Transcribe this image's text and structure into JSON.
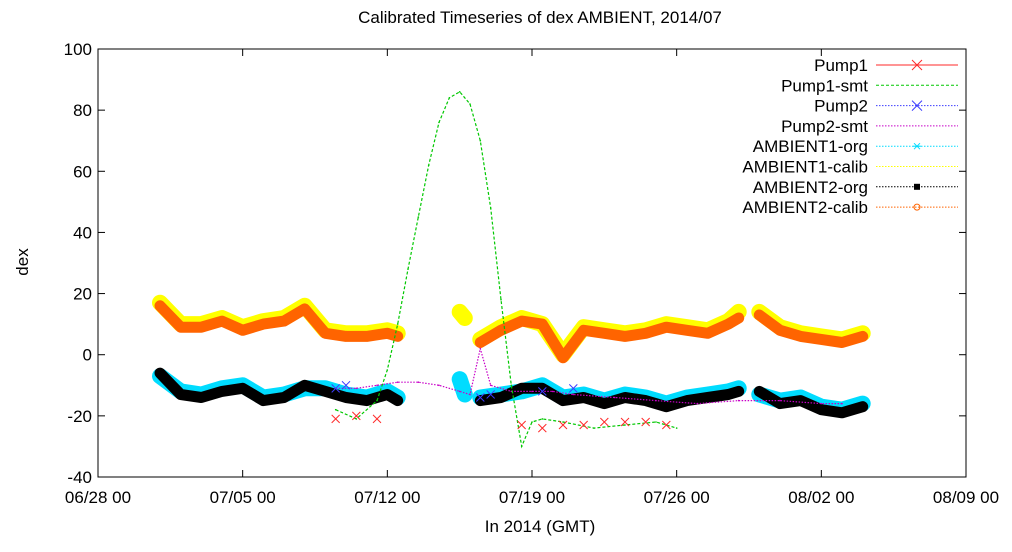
{
  "chart_data": {
    "type": "line",
    "title": "Calibrated Timeseries of dex AMBIENT, 2014/07",
    "xlabel": "In 2014 (GMT)",
    "ylabel": "dex",
    "xlim": [
      "06/28 00",
      "08/09 00"
    ],
    "ylim": [
      -40,
      100
    ],
    "y_ticks": [
      -40,
      -20,
      0,
      20,
      40,
      60,
      80,
      100
    ],
    "x_ticks": [
      "06/28 00",
      "07/05 00",
      "07/12 00",
      "07/19 00",
      "07/26 00",
      "08/02 00",
      "08/09 00"
    ],
    "grid": false,
    "legend_position": "top-right",
    "series": [
      {
        "name": "Pump1",
        "color": "#ff2a2a",
        "style": "points-x",
        "x": [
          "07/09 12",
          "07/10 12",
          "07/11 12",
          "07/18 12",
          "07/19 12",
          "07/20 12",
          "07/21 12",
          "07/22 12",
          "07/23 12",
          "07/24 12",
          "07/25 12"
        ],
        "y": [
          -21,
          -20,
          -21,
          -23,
          -24,
          -23,
          -23,
          -22,
          -22,
          -22,
          -23
        ]
      },
      {
        "name": "Pump1-smt",
        "color": "#00c800",
        "style": "dashed-line",
        "x": [
          "07/09 12",
          "07/10 12",
          "07/11 12",
          "07/12 00",
          "07/12 12",
          "07/13 00",
          "07/13 12",
          "07/14 00",
          "07/14 12",
          "07/15 00",
          "07/15 12",
          "07/16 00",
          "07/16 12",
          "07/17 00",
          "07/17 12",
          "07/18 00",
          "07/18 12",
          "07/19 00",
          "07/19 12",
          "07/20 12",
          "07/22 00",
          "07/23 12",
          "07/25 00",
          "07/26 00"
        ],
        "y": [
          -18,
          -21,
          -15,
          -5,
          10,
          28,
          45,
          62,
          76,
          84,
          86,
          82,
          70,
          48,
          18,
          -10,
          -30,
          -22,
          -21,
          -22,
          -24,
          -23,
          -22,
          -24
        ]
      },
      {
        "name": "Pump2",
        "color": "#3c3cff",
        "style": "points-x",
        "x": [
          "07/09 12",
          "07/10 00",
          "07/16 12",
          "07/17 00",
          "07/19 12",
          "07/21 00"
        ],
        "y": [
          -11,
          -10,
          -14,
          -13,
          -12,
          -11
        ]
      },
      {
        "name": "Pump2-smt",
        "color": "#c800c8",
        "style": "dotted-line",
        "x": [
          "07/09 12",
          "07/10 12",
          "07/11 12",
          "07/12 12",
          "07/13 12",
          "07/14 12",
          "07/15 12",
          "07/16 00",
          "07/16 12",
          "07/17 00",
          "07/18 00",
          "07/19 00",
          "07/20 00",
          "07/21 00",
          "07/23 00",
          "07/25 00",
          "07/27 00",
          "07/29 00",
          "07/31 00",
          "08/02 00",
          "08/03 00"
        ],
        "y": [
          -11,
          -11,
          -10,
          -9,
          -9,
          -10,
          -12,
          -13,
          2,
          -10,
          -12,
          -12,
          -12,
          -13,
          -14,
          -15,
          -16,
          -15,
          -15,
          -16,
          -16
        ]
      },
      {
        "name": "AMBIENT1-org",
        "color": "#00dcff",
        "style": "dense-points",
        "segments": [
          {
            "x": [
              "07/01 00",
              "07/02 00",
              "07/03 00",
              "07/04 00",
              "07/05 00",
              "07/06 00",
              "07/07 00",
              "07/08 00",
              "07/09 00",
              "07/10 00",
              "07/11 00",
              "07/12 00",
              "07/12 12"
            ],
            "y": [
              -7,
              -12,
              -13,
              -11,
              -10,
              -14,
              -13,
              -11,
              -11,
              -13,
              -14,
              -12,
              -14
            ]
          },
          {
            "x": [
              "07/15 12",
              "07/15 18"
            ],
            "y": [
              -8,
              -13
            ]
          },
          {
            "x": [
              "07/16 12",
              "07/17 12",
              "07/18 12",
              "07/19 12",
              "07/20 12",
              "07/21 12",
              "07/22 12",
              "07/23 12",
              "07/24 12",
              "07/25 12",
              "07/26 12",
              "07/27 12",
              "07/28 12",
              "07/29 00"
            ],
            "y": [
              -14,
              -13,
              -12,
              -10,
              -14,
              -13,
              -15,
              -13,
              -14,
              -16,
              -14,
              -13,
              -12,
              -11
            ]
          },
          {
            "x": [
              "07/30 00",
              "07/31 00",
              "08/01 00",
              "08/02 00",
              "08/03 00",
              "08/04 00"
            ],
            "y": [
              -13,
              -15,
              -14,
              -17,
              -18,
              -16
            ]
          }
        ]
      },
      {
        "name": "AMBIENT1-calib",
        "color": "#ffff00",
        "style": "dense-points",
        "segments": [
          {
            "x": [
              "07/01 00",
              "07/02 00",
              "07/03 00",
              "07/04 00",
              "07/05 00",
              "07/06 00",
              "07/07 00",
              "07/08 00",
              "07/09 00",
              "07/10 00",
              "07/11 00",
              "07/12 00",
              "07/12 12"
            ],
            "y": [
              17,
              10,
              10,
              12,
              9,
              11,
              12,
              16,
              8,
              7,
              7,
              8,
              7
            ]
          },
          {
            "x": [
              "07/15 12",
              "07/15 18"
            ],
            "y": [
              14,
              12
            ]
          },
          {
            "x": [
              "07/16 12",
              "07/17 12",
              "07/18 12",
              "07/19 12",
              "07/20 12",
              "07/21 12",
              "07/22 12",
              "07/23 12",
              "07/24 12",
              "07/25 12",
              "07/26 12",
              "07/27 12",
              "07/28 12",
              "07/29 00"
            ],
            "y": [
              5,
              9,
              12,
              10,
              0,
              9,
              8,
              7,
              8,
              10,
              9,
              8,
              11,
              14
            ]
          },
          {
            "x": [
              "07/30 00",
              "07/31 00",
              "08/01 00",
              "08/02 00",
              "08/03 00",
              "08/04 00"
            ],
            "y": [
              14,
              9,
              7,
              6,
              5,
              7
            ]
          }
        ]
      },
      {
        "name": "AMBIENT2-org",
        "color": "#000000",
        "style": "dense-points",
        "segments": [
          {
            "x": [
              "07/01 00",
              "07/02 00",
              "07/03 00",
              "07/04 00",
              "07/05 00",
              "07/06 00",
              "07/07 00",
              "07/08 00",
              "07/09 00",
              "07/10 00",
              "07/11 00",
              "07/12 00",
              "07/12 12"
            ],
            "y": [
              -6,
              -13,
              -14,
              -12,
              -11,
              -15,
              -14,
              -10,
              -12,
              -14,
              -15,
              -13,
              -15
            ]
          },
          {
            "x": [
              "07/16 12",
              "07/17 12",
              "07/18 12",
              "07/19 12",
              "07/20 12",
              "07/21 12",
              "07/22 12",
              "07/23 12",
              "07/24 12",
              "07/25 12",
              "07/26 12",
              "07/27 12",
              "07/28 12",
              "07/29 00"
            ],
            "y": [
              -15,
              -14,
              -11,
              -11,
              -15,
              -14,
              -16,
              -14,
              -15,
              -17,
              -15,
              -14,
              -13,
              -12
            ]
          },
          {
            "x": [
              "07/30 00",
              "07/31 00",
              "08/01 00",
              "08/02 00",
              "08/03 00",
              "08/04 00"
            ],
            "y": [
              -12,
              -16,
              -15,
              -18,
              -19,
              -17
            ]
          }
        ]
      },
      {
        "name": "AMBIENT2-calib",
        "color": "#ff6400",
        "style": "dense-points",
        "segments": [
          {
            "x": [
              "07/01 00",
              "07/02 00",
              "07/03 00",
              "07/04 00",
              "07/05 00",
              "07/06 00",
              "07/07 00",
              "07/08 00",
              "07/09 00",
              "07/10 00",
              "07/11 00",
              "07/12 00",
              "07/12 12"
            ],
            "y": [
              16,
              9,
              9,
              11,
              8,
              10,
              11,
              15,
              7,
              6,
              6,
              7,
              6
            ]
          },
          {
            "x": [
              "07/16 12",
              "07/17 12",
              "07/18 12",
              "07/19 12",
              "07/20 12",
              "07/21 12",
              "07/22 12",
              "07/23 12",
              "07/24 12",
              "07/25 12",
              "07/26 12",
              "07/27 12",
              "07/28 12",
              "07/29 00"
            ],
            "y": [
              4,
              8,
              11,
              10,
              -1,
              8,
              7,
              6,
              7,
              9,
              8,
              7,
              10,
              12
            ]
          },
          {
            "x": [
              "07/30 00",
              "07/31 00",
              "08/01 00",
              "08/02 00",
              "08/03 00",
              "08/04 00"
            ],
            "y": [
              13,
              8,
              6,
              5,
              4,
              6
            ]
          }
        ]
      }
    ]
  }
}
